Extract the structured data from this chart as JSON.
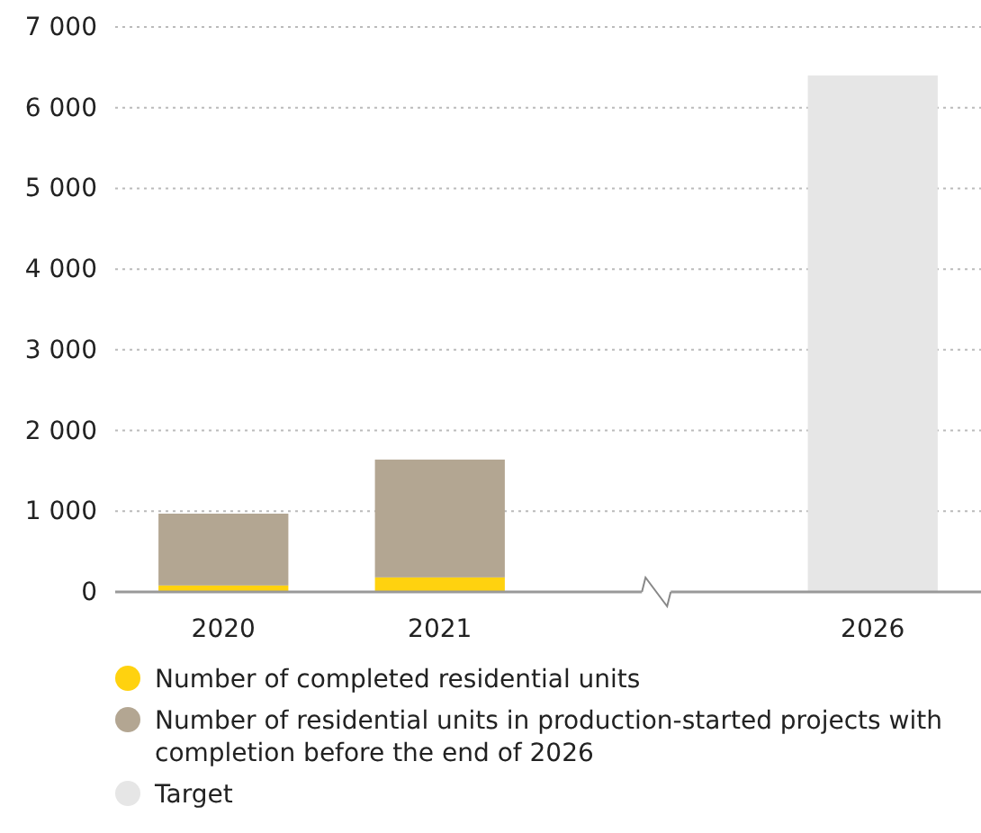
{
  "chart_data": {
    "type": "bar",
    "stacked": true,
    "categories": [
      "2020",
      "2021",
      null,
      "2026"
    ],
    "series": [
      {
        "name": "Number of completed residential units",
        "color": "#ffd20f",
        "values": [
          80,
          180,
          null,
          null
        ]
      },
      {
        "name": "Number of residential units in production-started projects with completion before the end of 2026",
        "color": "#b3a692",
        "values": [
          890,
          1460,
          null,
          null
        ]
      },
      {
        "name": "Target",
        "color": "#e6e6e6",
        "values": [
          null,
          null,
          null,
          6400
        ]
      }
    ],
    "ylim": [
      0,
      7000
    ],
    "yticks": [
      {
        "value": 0,
        "label": "0"
      },
      {
        "value": 1000,
        "label": "1 000"
      },
      {
        "value": 2000,
        "label": "2 000"
      },
      {
        "value": 3000,
        "label": "3 000"
      },
      {
        "value": 4000,
        "label": "4 000"
      },
      {
        "value": 5000,
        "label": "5 000"
      },
      {
        "value": 6000,
        "label": "6 000"
      },
      {
        "value": 7000,
        "label": "7 000"
      }
    ],
    "grid": "y",
    "legend": "bottom"
  }
}
